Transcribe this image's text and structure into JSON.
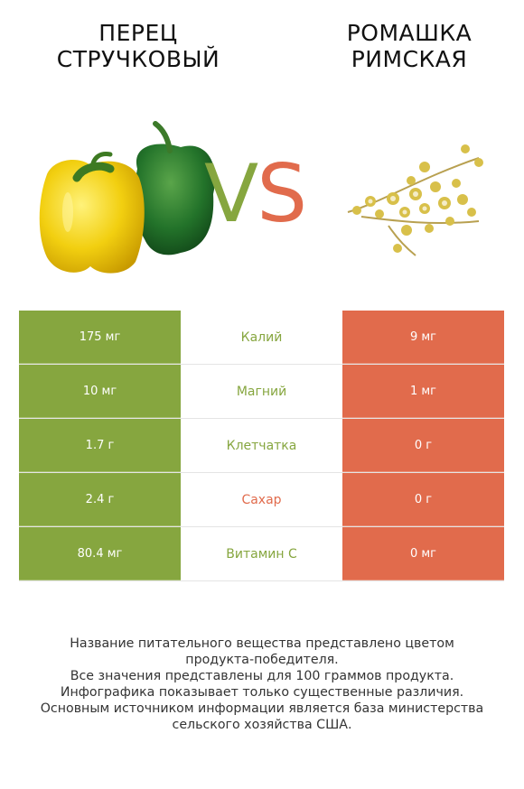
{
  "left_title_lines": [
    "ПЕРЕЦ",
    "СТРУЧКОВЫЙ"
  ],
  "right_title_lines": [
    "РОМАШКА",
    "РИМСКАЯ"
  ],
  "vs": {
    "v": "V",
    "s": "S"
  },
  "colors": {
    "left": "#86a63f",
    "right": "#e16b4c"
  },
  "rows": [
    {
      "left": "175 мг",
      "label": "Калий",
      "right": "9 мг",
      "winner": "left"
    },
    {
      "left": "10 мг",
      "label": "Магний",
      "right": "1 мг",
      "winner": "left"
    },
    {
      "left": "1.7 г",
      "label": "Клетчатка",
      "right": "0 г",
      "winner": "left"
    },
    {
      "left": "2.4 г",
      "label": "Сахар",
      "right": "0 г",
      "winner": "right"
    },
    {
      "left": "80.4 мг",
      "label": "Витамин C",
      "right": "0 мг",
      "winner": "left"
    }
  ],
  "footnote": [
    "Название питательного вещества представлено цветом",
    "продукта-победителя.",
    "Все значения представлены для 100 граммов продукта.",
    "Инфографика показывает только существенные различия.",
    "Основным источником информации является база министерства",
    "сельского хозяйства США."
  ]
}
